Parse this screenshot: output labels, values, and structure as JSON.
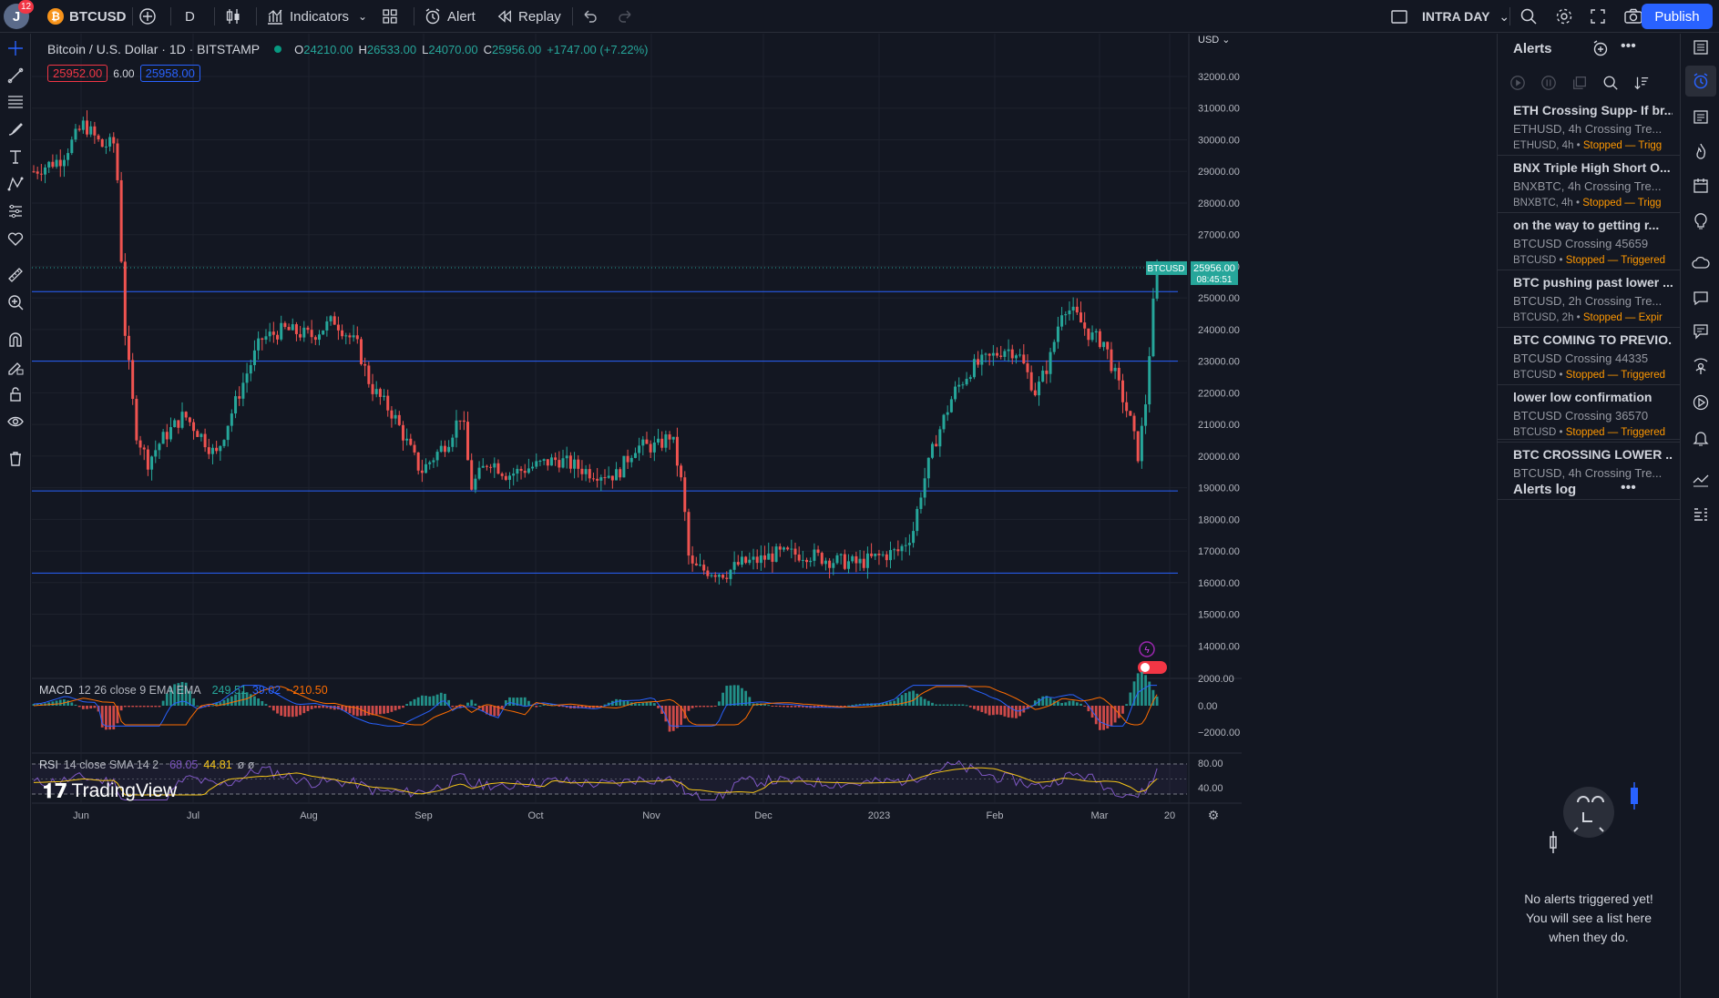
{
  "topbar": {
    "avatar_letter": "J",
    "notification_count": "12",
    "symbol": "BTCUSD",
    "interval": "D",
    "indicators_label": "Indicators",
    "alert_label": "Alert",
    "replay_label": "Replay",
    "layout_name": "INTRA DAY",
    "publish_label": "Publish"
  },
  "left_tools": [
    "crosshair-icon",
    "trend-line-icon",
    "fib-icon",
    "brush-icon",
    "text-icon",
    "pattern-icon",
    "forecast-icon",
    "favorites-icon",
    "ruler-icon",
    "zoom-icon",
    "magnet-icon",
    "lock-drawing-icon",
    "lock-icon",
    "eye-icon",
    "trash-icon"
  ],
  "legend": {
    "title": "Bitcoin / U.S. Dollar · 1D · BITSTAMP",
    "o_label": "O",
    "o_value": "24210.00",
    "h_label": "H",
    "h_value": "26533.00",
    "l_label": "L",
    "l_value": "24070.00",
    "c_label": "C",
    "c_value": "25956.00",
    "change": "+1747.00 (+7.22%)",
    "bid": "25952.00",
    "spread": "6.00",
    "ask": "25958.00"
  },
  "price_axis": {
    "currency": "USD",
    "ticks": [
      "32000.00",
      "31000.00",
      "30000.00",
      "29000.00",
      "28000.00",
      "27000.00",
      "26000.00",
      "25000.00",
      "24000.00",
      "23000.00",
      "22000.00",
      "21000.00",
      "20000.00",
      "19000.00",
      "18000.00",
      "17000.00",
      "16000.00",
      "15000.00",
      "14000.00"
    ],
    "last_label": "BTCUSD",
    "last_price": "25956.00",
    "countdown": "08:45:51"
  },
  "time_axis": [
    "Jun",
    "Jul",
    "Aug",
    "Sep",
    "Oct",
    "Nov",
    "Dec",
    "2023",
    "Feb",
    "Mar",
    "20"
  ],
  "horizontal_lines": [
    25200,
    23000,
    18900,
    16300
  ],
  "macd": {
    "label": "MACD",
    "params": "12 26 close 9 EMA EMA",
    "v1": "249.51",
    "v2": "39.02",
    "v3": "−210.50",
    "ticks": [
      "2000.00",
      "0.00",
      "−2000.00"
    ]
  },
  "rsi": {
    "label": "RSI",
    "params": "14 close SMA 14 2",
    "v1": "68.05",
    "v2": "44.81",
    "v3": "ø ø",
    "ticks": [
      "80.00",
      "40.00"
    ]
  },
  "watermark": "TradingView",
  "alerts_panel": {
    "title": "Alerts",
    "items": [
      {
        "title": "ETH Crossing Supp- If br...",
        "sub": "ETHUSD, 4h Crossing Tre...",
        "meta": "ETHUSD, 4h",
        "status": "Stopped — Trigg"
      },
      {
        "title": "BNX Triple High Short O...",
        "sub": "BNXBTC, 4h Crossing Tre...",
        "meta": "BNXBTC, 4h",
        "status": "Stopped — Trigg"
      },
      {
        "title": "on the way to getting r...",
        "sub": "BTCUSD Crossing 45659",
        "meta": "BTCUSD",
        "status": "Stopped — Triggered"
      },
      {
        "title": "BTC pushing past lower ...",
        "sub": "BTCUSD, 2h Crossing Tre...",
        "meta": "BTCUSD, 2h",
        "status": "Stopped — Expir"
      },
      {
        "title": "BTC COMING TO PREVIO...",
        "sub": "BTCUSD Crossing 44335",
        "meta": "BTCUSD",
        "status": "Stopped — Triggered"
      },
      {
        "title": "lower low confirmation",
        "sub": "BTCUSD Crossing 36570",
        "meta": "BTCUSD",
        "status": "Stopped — Triggered"
      },
      {
        "title": "BTC CROSSING LOWER ...",
        "sub": "BTCUSD, 4h Crossing Tre...",
        "meta": "",
        "status": ""
      }
    ],
    "log_title": "Alerts log",
    "empty_line1": "No alerts triggered yet!",
    "empty_line2": "You will see a list here",
    "empty_line3": "when they do."
  },
  "right_sidebar": [
    "watchlist-icon",
    "alerts-icon",
    "data-window-icon",
    "hotlist-icon",
    "calendar-icon",
    "ideas-icon",
    "streams-icon",
    "chat-icon",
    "messages-icon",
    "broadcast-icon",
    "replay-icon",
    "notifications-icon",
    "trading-panel-icon",
    "dom-icon"
  ],
  "colors": {
    "background": "#131722",
    "up": "#26a69a",
    "down": "#ef5350",
    "hline": "#2962ff",
    "accent": "#2962ff",
    "macd_line": "#2962ff",
    "signal_line": "#ff6d00",
    "rsi_line": "#7e57c2",
    "rsi_ma": "#f5c518",
    "status": "#ff9800"
  }
}
